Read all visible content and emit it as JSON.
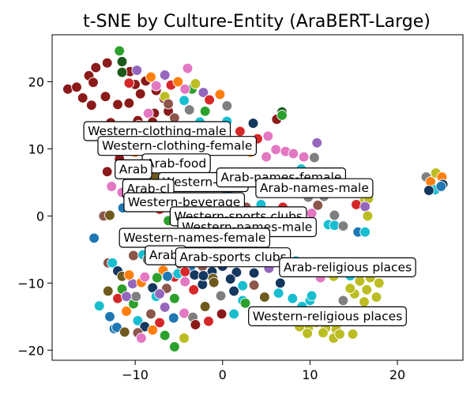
{
  "chart_data": {
    "type": "scatter",
    "title": "t-SNE by Culture-Entity (AraBERT-Large)",
    "xlabel": "",
    "ylabel": "",
    "xlim": [
      -19.5,
      27.5
    ],
    "ylim": [
      -21.5,
      27
    ],
    "xticks": [
      -10,
      0,
      10,
      20
    ],
    "yticks": [
      -20,
      -10,
      0,
      10,
      20
    ],
    "grid": false,
    "colors": [
      "#1f77b4",
      "#ff7f0e",
      "#2ca02c",
      "#d62728",
      "#9467bd",
      "#8c564b",
      "#e377c2",
      "#7f7f7f",
      "#bcbd22",
      "#17becf",
      "#8b1a1a",
      "#1a5a1a",
      "#14375e",
      "#6e5a1e",
      "#bcbd22",
      "#1f5f8c"
    ],
    "annotations": [
      {
        "text": "Western-clothing-male",
        "x": -7.5,
        "y": 12.7
      },
      {
        "text": "Western-clothing-female",
        "x": -5.2,
        "y": 10.5
      },
      {
        "text": "Arab-food",
        "x": -5.3,
        "y": 7.9
      },
      {
        "text": "Arab",
        "x": -10.2,
        "y": 7.0
      },
      {
        "text": "Western-food",
        "x": -2.2,
        "y": 5.1
      },
      {
        "text": "Arab-names-female",
        "x": 6.7,
        "y": 5.8
      },
      {
        "text": "Arab-names-male",
        "x": 10.5,
        "y": 4.2
      },
      {
        "text": "Arab-cl",
        "x": -8.5,
        "y": 4.1
      },
      {
        "text": "Western-beverage",
        "x": -4.4,
        "y": 2.1
      },
      {
        "text": "Western-sports clubs",
        "x": 1.8,
        "y": 0.0
      },
      {
        "text": "Western-names-male",
        "x": 2.8,
        "y": -1.6
      },
      {
        "text": "Western-names-female",
        "x": -3.2,
        "y": -3.2
      },
      {
        "text": "Arab-",
        "x": -6.5,
        "y": -5.8
      },
      {
        "text": "Arab-sports clubs",
        "x": 1.2,
        "y": -6.1
      },
      {
        "text": "Arab-religious places",
        "x": 14.3,
        "y": -7.6
      },
      {
        "text": "Western-religious places",
        "x": 12.0,
        "y": -14.9
      }
    ],
    "points": [
      [
        -17.7,
        18.9,
        10
      ],
      [
        -16.7,
        19.2,
        10
      ],
      [
        -16.0,
        17.6,
        10
      ],
      [
        -15.3,
        20.9,
        10
      ],
      [
        -14.5,
        22.1,
        10
      ],
      [
        -14.8,
        19.9,
        10
      ],
      [
        -13.4,
        17.8,
        10
      ],
      [
        -12.0,
        16.6,
        10
      ],
      [
        -11.5,
        23.0,
        11
      ],
      [
        -10.6,
        21.5,
        10
      ],
      [
        -10.0,
        19.6,
        10
      ],
      [
        -9.4,
        18.2,
        10
      ],
      [
        -8.8,
        20.1,
        10
      ],
      [
        -7.6,
        18.7,
        10
      ],
      [
        -6.7,
        17.5,
        10
      ],
      [
        -6.2,
        15.6,
        10
      ],
      [
        -7.8,
        15.3,
        10
      ],
      [
        -9.7,
        14.2,
        10
      ],
      [
        -10.7,
        16.8,
        10
      ],
      [
        -12.8,
        13.9,
        10
      ],
      [
        -13.6,
        11.9,
        10
      ],
      [
        -12.5,
        10.3,
        10
      ],
      [
        -11.8,
        8.5,
        10
      ],
      [
        -15.0,
        16.5,
        10
      ],
      [
        -13.2,
        22.8,
        10
      ],
      [
        -11.8,
        24.6,
        2
      ],
      [
        -11.5,
        21.4,
        11
      ],
      [
        -10.7,
        19.8,
        3
      ],
      [
        -9.8,
        21.7,
        4
      ],
      [
        -8.2,
        20.7,
        1
      ],
      [
        -7.6,
        19.4,
        6
      ],
      [
        -6.6,
        21.0,
        4
      ],
      [
        -5.9,
        19.5,
        3
      ],
      [
        -5.1,
        20.0,
        1
      ],
      [
        -4.0,
        22.0,
        6
      ],
      [
        -3.5,
        18.9,
        2
      ],
      [
        -4.4,
        17.2,
        9
      ],
      [
        -6.6,
        17.8,
        8
      ],
      [
        -8.5,
        15.3,
        6
      ],
      [
        -9.6,
        13.5,
        3
      ],
      [
        -8.0,
        12.4,
        0
      ],
      [
        -6.5,
        13.0,
        4
      ],
      [
        -5.5,
        14.6,
        5
      ],
      [
        -3.8,
        15.8,
        7
      ],
      [
        -2.6,
        14.0,
        9
      ],
      [
        -2.0,
        15.6,
        2
      ],
      [
        -1.0,
        12.6,
        3
      ],
      [
        0.5,
        16.4,
        7
      ],
      [
        0.5,
        14.1,
        9
      ],
      [
        2.0,
        12.6,
        3
      ],
      [
        3.5,
        13.8,
        12
      ],
      [
        4.0,
        11.5,
        3
      ],
      [
        3.2,
        9.5,
        1
      ],
      [
        6.2,
        14.4,
        10
      ],
      [
        6.8,
        15.5,
        11
      ],
      [
        6.8,
        15.0,
        2
      ],
      [
        5.2,
        11.9,
        6
      ],
      [
        6.1,
        9.9,
        6
      ],
      [
        7.2,
        9.6,
        6
      ],
      [
        8.1,
        9.3,
        6
      ],
      [
        9.3,
        8.8,
        6
      ],
      [
        10.5,
        8.7,
        7
      ],
      [
        10.8,
        10.9,
        4
      ],
      [
        9.0,
        7.0,
        9
      ],
      [
        5.0,
        8.8,
        6
      ],
      [
        7.5,
        6.5,
        1
      ],
      [
        -13.2,
        6.6,
        10
      ],
      [
        -11.7,
        6.8,
        5
      ],
      [
        -12.7,
        4.4,
        6
      ],
      [
        -9.5,
        4.6,
        9
      ],
      [
        -7.8,
        5.9,
        13
      ],
      [
        -6.4,
        5.5,
        1
      ],
      [
        -5.7,
        5.3,
        7
      ],
      [
        -4.2,
        6.5,
        5
      ],
      [
        -3.0,
        5.7,
        2
      ],
      [
        -8.7,
        2.2,
        4
      ],
      [
        -10.4,
        1.4,
        9
      ],
      [
        -11.5,
        3.5,
        6
      ],
      [
        -7.2,
        1.0,
        3
      ],
      [
        -6.2,
        -0.7,
        2
      ],
      [
        -5.1,
        2.2,
        8
      ],
      [
        -4.0,
        1.3,
        0
      ],
      [
        -2.3,
        2.6,
        5
      ],
      [
        -1.3,
        1.5,
        3
      ],
      [
        0.6,
        3.5,
        0
      ],
      [
        1.8,
        2.5,
        6
      ],
      [
        2.7,
        1.3,
        5
      ],
      [
        4.4,
        1.7,
        9
      ],
      [
        5.8,
        0.6,
        2
      ],
      [
        6.9,
        1.3,
        3
      ],
      [
        8.2,
        0.6,
        4
      ],
      [
        9.0,
        0.1,
        1
      ],
      [
        10.2,
        0.4,
        6
      ],
      [
        10.9,
        1.6,
        5
      ],
      [
        9.8,
        2.8,
        7
      ],
      [
        11.6,
        2.9,
        7
      ],
      [
        13.2,
        3.9,
        10
      ],
      [
        14.4,
        4.2,
        3
      ],
      [
        15.8,
        4.5,
        7
      ],
      [
        16.1,
        2.0,
        8
      ],
      [
        16.7,
        2.6,
        8
      ],
      [
        15.3,
        1.7,
        3
      ],
      [
        16.3,
        1.4,
        4
      ],
      [
        16.6,
        0.0,
        8
      ],
      [
        12.8,
        0.1,
        7
      ],
      [
        12.1,
        -1.3,
        9
      ],
      [
        12.8,
        -1.4,
        9
      ],
      [
        13.8,
        -1.5,
        7
      ],
      [
        15.5,
        -2.4,
        0
      ],
      [
        16.3,
        -2.4,
        9
      ],
      [
        -13.6,
        0.0,
        5
      ],
      [
        -12.9,
        0.1,
        13
      ],
      [
        -11.4,
        1.2,
        0
      ],
      [
        -14.7,
        -3.3,
        0
      ],
      [
        -13.1,
        -7.0,
        5
      ],
      [
        -12.6,
        -7.0,
        9
      ],
      [
        -9.9,
        -3.5,
        5
      ],
      [
        -10.2,
        -5.9,
        5
      ],
      [
        -9.1,
        -5.8,
        9
      ],
      [
        -8.6,
        -6.5,
        7
      ],
      [
        -7.3,
        -5.0,
        2
      ],
      [
        -6.8,
        -8.1,
        1
      ],
      [
        -5.5,
        -9.1,
        3
      ],
      [
        -4.7,
        -7.6,
        5
      ],
      [
        -3.7,
        -7.8,
        0
      ],
      [
        -2.3,
        -7.5,
        5
      ],
      [
        -1.2,
        -8.3,
        12
      ],
      [
        0.0,
        -7.5,
        12
      ],
      [
        1.6,
        -8.4,
        12
      ],
      [
        2.3,
        -10.4,
        9
      ],
      [
        3.6,
        -8.5,
        12
      ],
      [
        5.3,
        -7.8,
        4
      ],
      [
        6.8,
        -6.7,
        4
      ],
      [
        7.4,
        -8.0,
        5
      ],
      [
        8.4,
        -6.7,
        9
      ],
      [
        9.6,
        -7.1,
        9
      ],
      [
        10.4,
        -7.6,
        5
      ],
      [
        11.2,
        -9.2,
        6
      ],
      [
        12.7,
        -9.0,
        8
      ],
      [
        13.9,
        -7.0,
        8
      ],
      [
        14.6,
        -8.9,
        9
      ],
      [
        15.7,
        -9.7,
        8
      ],
      [
        16.9,
        -9.2,
        8
      ],
      [
        17.9,
        -10.0,
        8
      ],
      [
        16.5,
        -11.0,
        8
      ],
      [
        15.1,
        -11.6,
        8
      ],
      [
        16.2,
        -12.8,
        8
      ],
      [
        17.6,
        -12.1,
        8
      ],
      [
        14.6,
        -10.8,
        8
      ],
      [
        13.8,
        -12.6,
        7
      ],
      [
        13.6,
        -14.4,
        8
      ],
      [
        14.5,
        -15.2,
        8
      ],
      [
        13.0,
        -16.9,
        8
      ],
      [
        11.8,
        -16.7,
        8
      ],
      [
        10.7,
        -15.9,
        8
      ],
      [
        9.8,
        -16.7,
        14
      ],
      [
        8.8,
        -16.5,
        14
      ],
      [
        9.7,
        -17.5,
        14
      ],
      [
        12.7,
        -18.2,
        14
      ],
      [
        11.5,
        -17.4,
        14
      ],
      [
        13.4,
        -17.6,
        14
      ],
      [
        14.9,
        -17.6,
        14
      ],
      [
        10.0,
        -12.6,
        9
      ],
      [
        9.1,
        -13.5,
        9
      ],
      [
        8.0,
        -12.3,
        9
      ],
      [
        10.2,
        -11.9,
        9
      ],
      [
        6.4,
        -11.5,
        9
      ],
      [
        -14.1,
        -13.4,
        9
      ],
      [
        -11.5,
        -10.9,
        2
      ],
      [
        -12.0,
        -12.3,
        3
      ],
      [
        -10.3,
        -10.1,
        4
      ],
      [
        -9.3,
        -9.9,
        1
      ],
      [
        -8.0,
        -10.7,
        12
      ],
      [
        -7.6,
        -12.0,
        9
      ],
      [
        -6.4,
        -10.8,
        5
      ],
      [
        -5.5,
        -12.3,
        2
      ],
      [
        -4.3,
        -9.8,
        6
      ],
      [
        -3.3,
        -11.0,
        3
      ],
      [
        -2.3,
        -10.2,
        12
      ],
      [
        -1.1,
        -9.3,
        13
      ],
      [
        -0.2,
        -11.9,
        7
      ],
      [
        1.3,
        -11.2,
        12
      ],
      [
        2.3,
        -12.6,
        9
      ],
      [
        3.6,
        -10.3,
        5
      ],
      [
        4.8,
        -12.1,
        13
      ],
      [
        6.6,
        -10.0,
        12
      ],
      [
        -12.9,
        -15.0,
        0
      ],
      [
        -12.4,
        -16.8,
        0
      ],
      [
        -11.0,
        -14.2,
        1
      ],
      [
        -10.2,
        -13.1,
        2
      ],
      [
        -9.7,
        -15.6,
        9
      ],
      [
        -8.9,
        -16.5,
        12
      ],
      [
        -8.2,
        -14.6,
        5
      ],
      [
        -7.2,
        -15.9,
        3
      ],
      [
        -6.6,
        -13.6,
        4
      ],
      [
        -5.6,
        -15.2,
        0
      ],
      [
        -4.4,
        -14.5,
        6
      ],
      [
        -3.4,
        -15.1,
        7
      ],
      [
        -2.0,
        -13.5,
        13
      ],
      [
        -1.6,
        -15.7,
        3
      ],
      [
        -0.1,
        -14.6,
        10
      ],
      [
        1.3,
        -14.6,
        9
      ],
      [
        2.6,
        -13.0,
        2
      ],
      [
        -12.1,
        -16.6,
        0
      ],
      [
        -11.2,
        -17.3,
        13
      ],
      [
        -9.7,
        -17.4,
        5
      ],
      [
        -9.3,
        -18.2,
        6
      ],
      [
        -8.0,
        -17.0,
        1
      ],
      [
        -6.6,
        -17.8,
        2
      ],
      [
        -5.5,
        -19.5,
        2
      ],
      [
        -4.4,
        -18.2,
        8
      ],
      [
        -3.1,
        -16.2,
        10
      ],
      [
        -7.2,
        -11.6,
        4
      ],
      [
        -9.9,
        -12.0,
        7
      ],
      [
        -11.0,
        -12.0,
        4
      ],
      [
        -13.1,
        -11.2,
        13
      ],
      [
        -12.0,
        -8.2,
        12
      ],
      [
        -11.5,
        -9.0,
        13
      ],
      [
        -10.7,
        -8.8,
        1
      ],
      [
        -8.9,
        -9.1,
        6
      ],
      [
        -7.5,
        -9.2,
        2
      ],
      [
        -6.3,
        -9.0,
        0
      ],
      [
        -5.1,
        -8.6,
        9
      ],
      [
        -4.3,
        -8.3,
        3
      ],
      [
        -3.2,
        -8.8,
        12
      ],
      [
        -2.2,
        -8.9,
        12
      ],
      [
        -1.0,
        -9.9,
        13
      ],
      [
        0.9,
        -9.4,
        12
      ],
      [
        23.3,
        5.8,
        7
      ],
      [
        24.4,
        6.4,
        8
      ],
      [
        25.1,
        5.8,
        1
      ],
      [
        23.8,
        5.1,
        1
      ],
      [
        24.3,
        3.9,
        9
      ],
      [
        25.2,
        4.7,
        12
      ],
      [
        25.0,
        4.4,
        0
      ],
      [
        23.6,
        3.8,
        12
      ],
      [
        -4.3,
        18.9,
        6
      ],
      [
        -3.1,
        19.7,
        8
      ],
      [
        -2.2,
        18.4,
        4
      ],
      [
        -1.5,
        17.3,
        3
      ],
      [
        -0.3,
        18.1,
        1
      ],
      [
        -6.2,
        16.7,
        5
      ],
      [
        -8.0,
        14.0,
        10
      ],
      [
        -11.1,
        12.7,
        10
      ],
      [
        -9.2,
        10.6,
        0
      ],
      [
        -10.0,
        9.5,
        1
      ]
    ]
  }
}
